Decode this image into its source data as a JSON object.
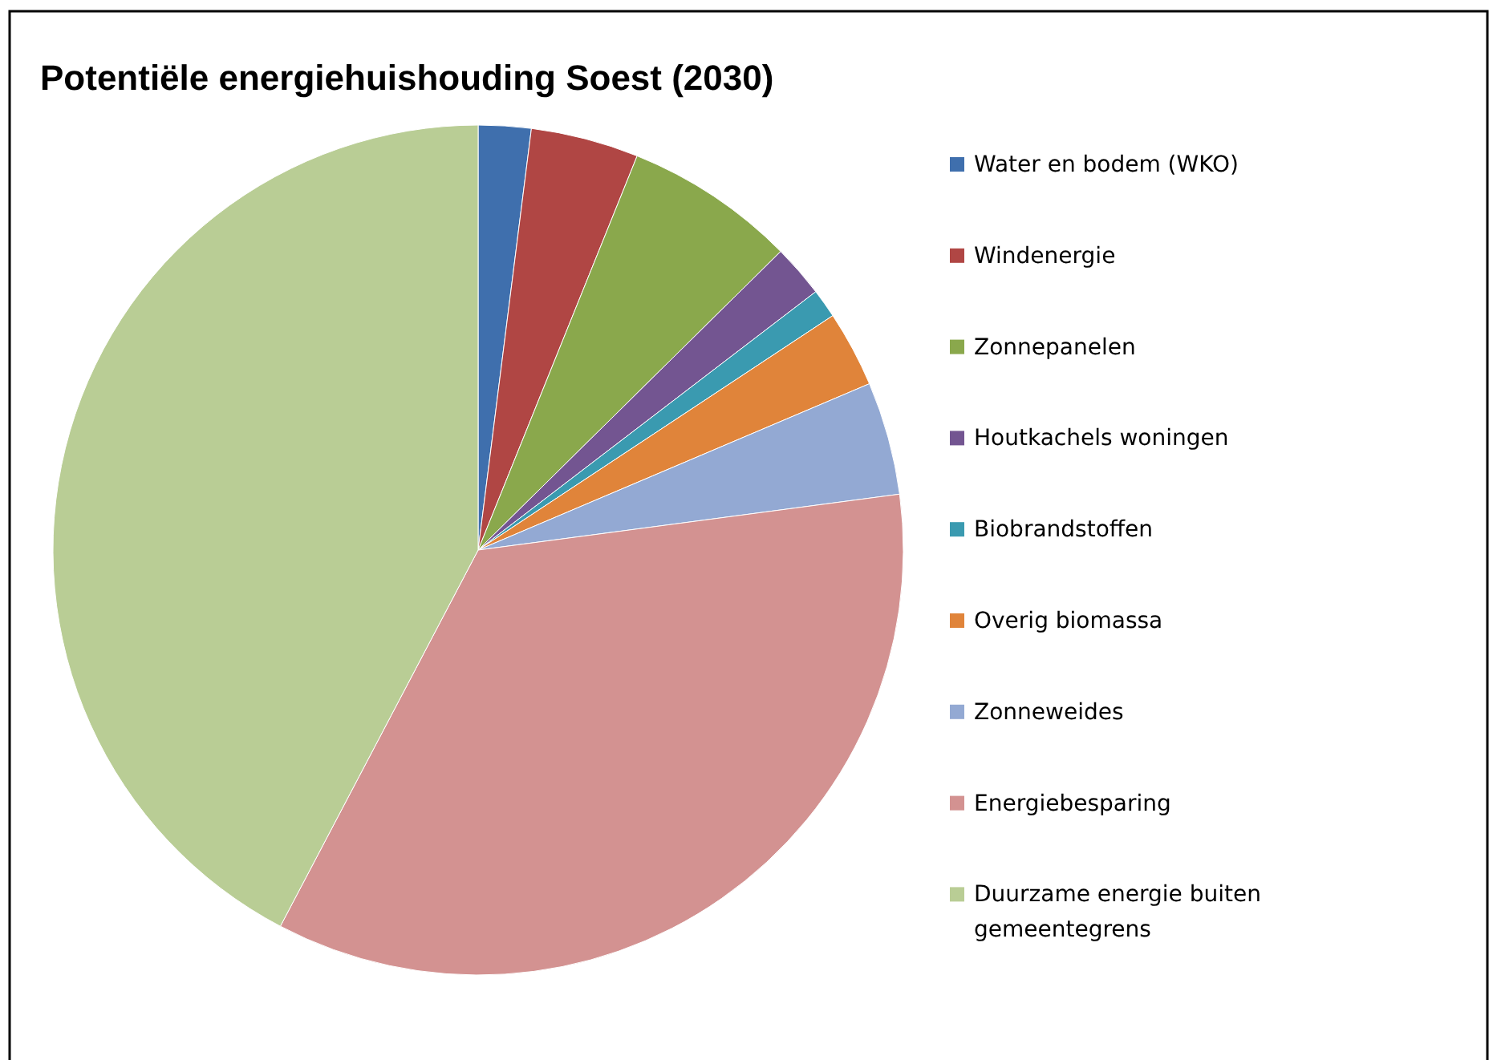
{
  "chart_data": {
    "type": "pie",
    "title": "Potentiële energiehuishouding Soest (2030)",
    "categories": [
      "Water en bodem (WKO)",
      "Windenergie",
      "Zonnepanelen",
      "Houtkachels woningen",
      "Biobrandstoffen",
      "Overig biomassa",
      "Zonneweides",
      "Energiebesparing",
      "Duurzame energie buiten gemeentegrens"
    ],
    "values": [
      2,
      4.1,
      6.5,
      2,
      1.1,
      2.9,
      4.3,
      34.8,
      42.3
    ],
    "colors": [
      "#3f6fad",
      "#b04644",
      "#8aa84c",
      "#735591",
      "#3a9ab0",
      "#e0843a",
      "#93a9d3",
      "#d39291",
      "#b9cd95"
    ],
    "legend": "right"
  }
}
